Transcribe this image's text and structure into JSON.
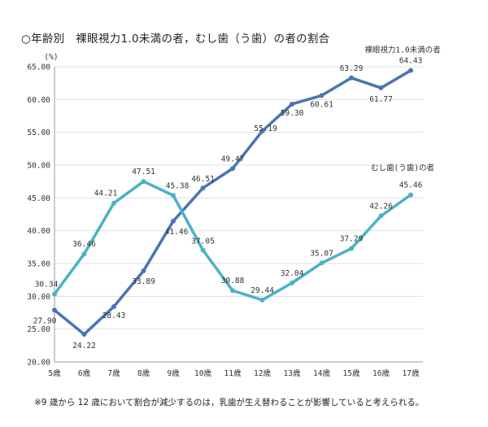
{
  "title": "○年齢別　裸眼視力1.0未満の者，むし歯（う歯）の者の割合",
  "note": "※9 歳から 12 歳において割合が減少するのは，乳歯が生え替わることが影響していると考えられる。",
  "chart_data": {
    "type": "line",
    "title": "○年齢別　裸眼視力1.0未満の者，むし歯（う歯）の者の割合",
    "ylabel": "(%)",
    "xlabel": "",
    "ylim": [
      20,
      65
    ],
    "yticks": [
      "20.00",
      "25.00",
      "30.00",
      "35.00",
      "40.00",
      "45.00",
      "50.00",
      "55.00",
      "60.00",
      "65.00"
    ],
    "grid": true,
    "legend": "labels at line ends",
    "categories": [
      "5歳",
      "6歳",
      "7歳",
      "8歳",
      "9歳",
      "10歳",
      "11歳",
      "12歳",
      "13歳",
      "14歳",
      "15歳",
      "16歳",
      "17歳"
    ],
    "series": [
      {
        "name": "裸眼視力1.0未満の者",
        "color": "#4a74b4",
        "values": [
          27.9,
          24.22,
          28.43,
          33.89,
          41.46,
          46.51,
          49.47,
          55.19,
          59.3,
          60.61,
          63.29,
          61.77,
          64.43
        ],
        "labels": [
          "27.90",
          "24.22",
          "28.43",
          "33.89",
          "41.46",
          "46.51",
          "49.47",
          "55.19",
          "59.30",
          "60.61",
          "63.29",
          "61.77",
          "64.43"
        ]
      },
      {
        "name": "むし歯(う歯)の者",
        "color": "#4bb2c6",
        "values": [
          30.34,
          36.46,
          44.21,
          47.51,
          45.38,
          37.05,
          30.88,
          29.44,
          32.04,
          35.07,
          37.29,
          42.26,
          45.46
        ],
        "labels": [
          "30.34",
          "36.46",
          "44.21",
          "47.51",
          "45.38",
          "37.05",
          "30.88",
          "29.44",
          "32.04",
          "35.07",
          "37.29",
          "42.26",
          "45.46"
        ]
      }
    ]
  }
}
